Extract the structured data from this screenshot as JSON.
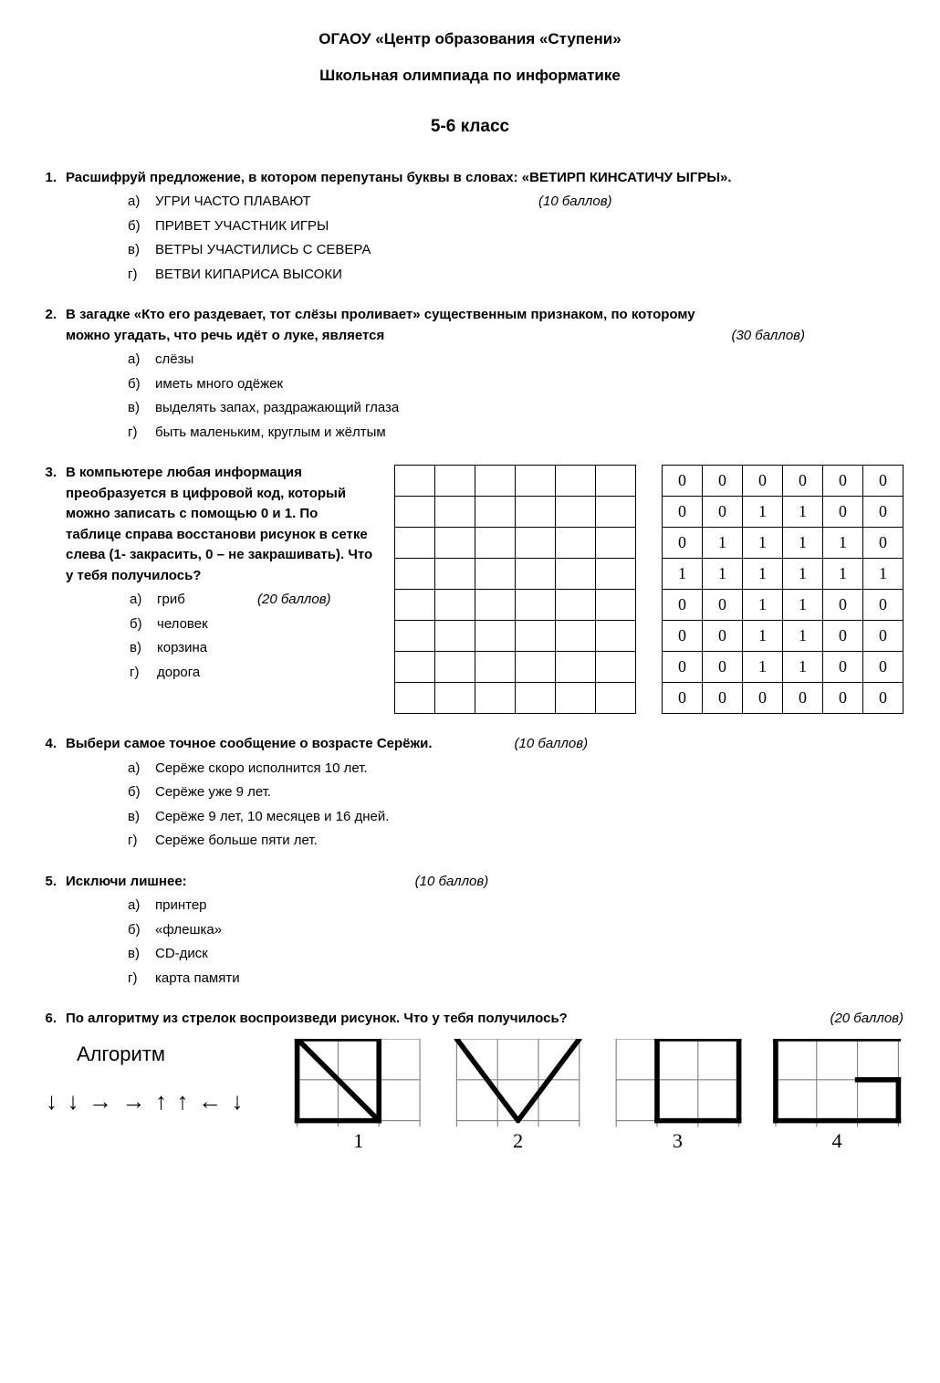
{
  "header": {
    "line1": "ОГАОУ «Центр образования «Ступени»",
    "line2": "Школьная олимпиада по информатике",
    "line3": "5-6 класс"
  },
  "q1": {
    "num": "1.",
    "text": "Расшифруй предложение, в котором перепутаны буквы в словах: «ВЕТИРП  КИНСАТИЧУ  ЫГРЫ».",
    "points": "(10 баллов)",
    "opts": {
      "a": {
        "l": "а)",
        "t": "УГРИ  ЧАСТО  ПЛАВАЮТ"
      },
      "b": {
        "l": "б)",
        "t": "ПРИВЕТ  УЧАСТНИК  ИГРЫ"
      },
      "v": {
        "l": "в)",
        "t": "ВЕТРЫ  УЧАСТИЛИСЬ  С  СЕВЕРА"
      },
      "g": {
        "l": "г)",
        "t": "ВЕТВИ КИПАРИСА ВЫСОКИ"
      }
    }
  },
  "q2": {
    "num": "2.",
    "text1": "В загадке «Кто его раздевает, тот слёзы проливает» существенным признаком, по которому",
    "text2": "можно угадать, что речь идёт о луке, является",
    "points": "(30 баллов)",
    "opts": {
      "a": {
        "l": "а)",
        "t": "слёзы"
      },
      "b": {
        "l": "б)",
        "t": "иметь много одёжек"
      },
      "v": {
        "l": "в)",
        "t": "выделять запах, раздражающий глаза"
      },
      "g": {
        "l": "г)",
        "t": "быть маленьким, круглым и жёлтым"
      }
    }
  },
  "q3": {
    "num": "3.",
    "text": "В компьютере любая информация преобразуется в цифровой код, который можно записать с помощью 0 и 1. По таблице справа восстанови рисунок в сетке слева (1- закрасить, 0 – не закрашивать). Что у тебя получилось?",
    "points": "(20 баллов)",
    "opts": {
      "a": {
        "l": "а)",
        "t": "гриб"
      },
      "b": {
        "l": "б)",
        "t": "человек"
      },
      "v": {
        "l": "в)",
        "t": "корзина"
      },
      "g": {
        "l": "г)",
        "t": "дорога"
      }
    },
    "empty_grid": {
      "rows": 8,
      "cols": 6
    },
    "data_grid": [
      [
        "0",
        "0",
        "0",
        "0",
        "0",
        "0"
      ],
      [
        "0",
        "0",
        "1",
        "1",
        "0",
        "0"
      ],
      [
        "0",
        "1",
        "1",
        "1",
        "1",
        "0"
      ],
      [
        "1",
        "1",
        "1",
        "1",
        "1",
        "1"
      ],
      [
        "0",
        "0",
        "1",
        "1",
        "0",
        "0"
      ],
      [
        "0",
        "0",
        "1",
        "1",
        "0",
        "0"
      ],
      [
        "0",
        "0",
        "1",
        "1",
        "0",
        "0"
      ],
      [
        "0",
        "0",
        "0",
        "0",
        "0",
        "0"
      ]
    ]
  },
  "q4": {
    "num": "4.",
    "text": "Выбери самое точное сообщение о возрасте Серёжи.",
    "points": "(10 баллов)",
    "opts": {
      "a": {
        "l": "а)",
        "t": "Серёже скоро исполнится 10 лет."
      },
      "b": {
        "l": "б)",
        "t": "Серёже уже 9 лет."
      },
      "v": {
        "l": "в)",
        "t": "Серёже 9 лет, 10 месяцев и 16 дней."
      },
      "g": {
        "l": "г)",
        "t": "Серёже больше пяти лет."
      }
    }
  },
  "q5": {
    "num": "5.",
    "text": "Исключи лишнее:",
    "points": "(10 баллов)",
    "opts": {
      "a": {
        "l": "а)",
        "t": "принтер"
      },
      "b": {
        "l": "б)",
        "t": " «флешка»"
      },
      "v": {
        "l": "в)",
        "t": "CD-диск"
      },
      "g": {
        "l": "г)",
        "t": "карта памяти"
      }
    }
  },
  "q6": {
    "num": "6.",
    "text": "По алгоритму из стрелок воспроизведи рисунок. Что у тебя получилось?",
    "points": "(20 баллов)",
    "alg_title": "Алгоритм",
    "arrows": "↓ ↓ → → ↑ ↑ ← ↓",
    "shape_labels": {
      "1": "1",
      "2": "2",
      "3": "3",
      "4": "4"
    },
    "shapes_style": {
      "cell": 40,
      "rows": 2,
      "grid_stroke": "#808080",
      "grid_width": 1,
      "shape_stroke": "#000000",
      "shape_width": 5,
      "label_font_size": 20,
      "label_font": "Times New Roman"
    }
  }
}
